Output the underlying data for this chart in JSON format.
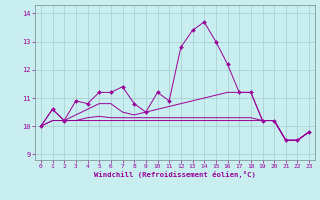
{
  "title": "",
  "xlabel": "Windchill (Refroidissement éolien,°C)",
  "bg_color": "#c8eef0",
  "grid_color": "#a8ccd0",
  "line_color": "#990099",
  "xlim": [
    -0.5,
    23.5
  ],
  "ylim": [
    8.8,
    14.3
  ],
  "yticks": [
    9,
    10,
    11,
    12,
    13,
    14
  ],
  "xticks": [
    0,
    1,
    2,
    3,
    4,
    5,
    6,
    7,
    8,
    9,
    10,
    11,
    12,
    13,
    14,
    15,
    16,
    17,
    18,
    19,
    20,
    21,
    22,
    23
  ],
  "series": [
    [
      10.0,
      10.6,
      10.2,
      10.9,
      10.8,
      11.2,
      11.2,
      11.4,
      10.8,
      10.5,
      11.2,
      10.9,
      12.8,
      13.4,
      13.7,
      13.0,
      12.2,
      11.2,
      11.2,
      10.2,
      10.2,
      9.5,
      9.5,
      9.8
    ],
    [
      10.0,
      10.6,
      10.2,
      10.4,
      10.6,
      10.8,
      10.8,
      10.5,
      10.4,
      10.5,
      10.6,
      10.7,
      10.8,
      10.9,
      11.0,
      11.1,
      11.2,
      11.2,
      11.2,
      10.2,
      10.2,
      9.5,
      9.5,
      9.8
    ],
    [
      10.0,
      10.2,
      10.2,
      10.2,
      10.3,
      10.35,
      10.3,
      10.3,
      10.3,
      10.3,
      10.3,
      10.3,
      10.3,
      10.3,
      10.3,
      10.3,
      10.3,
      10.3,
      10.3,
      10.2,
      10.2,
      9.5,
      9.5,
      9.8
    ],
    [
      10.0,
      10.2,
      10.2,
      10.2,
      10.2,
      10.2,
      10.2,
      10.2,
      10.2,
      10.2,
      10.2,
      10.2,
      10.2,
      10.2,
      10.2,
      10.2,
      10.2,
      10.2,
      10.2,
      10.2,
      10.2,
      9.5,
      9.5,
      9.8
    ]
  ],
  "series_has_markers": [
    true,
    false,
    false,
    false
  ],
  "figsize": [
    3.2,
    2.0
  ],
  "dpi": 100
}
